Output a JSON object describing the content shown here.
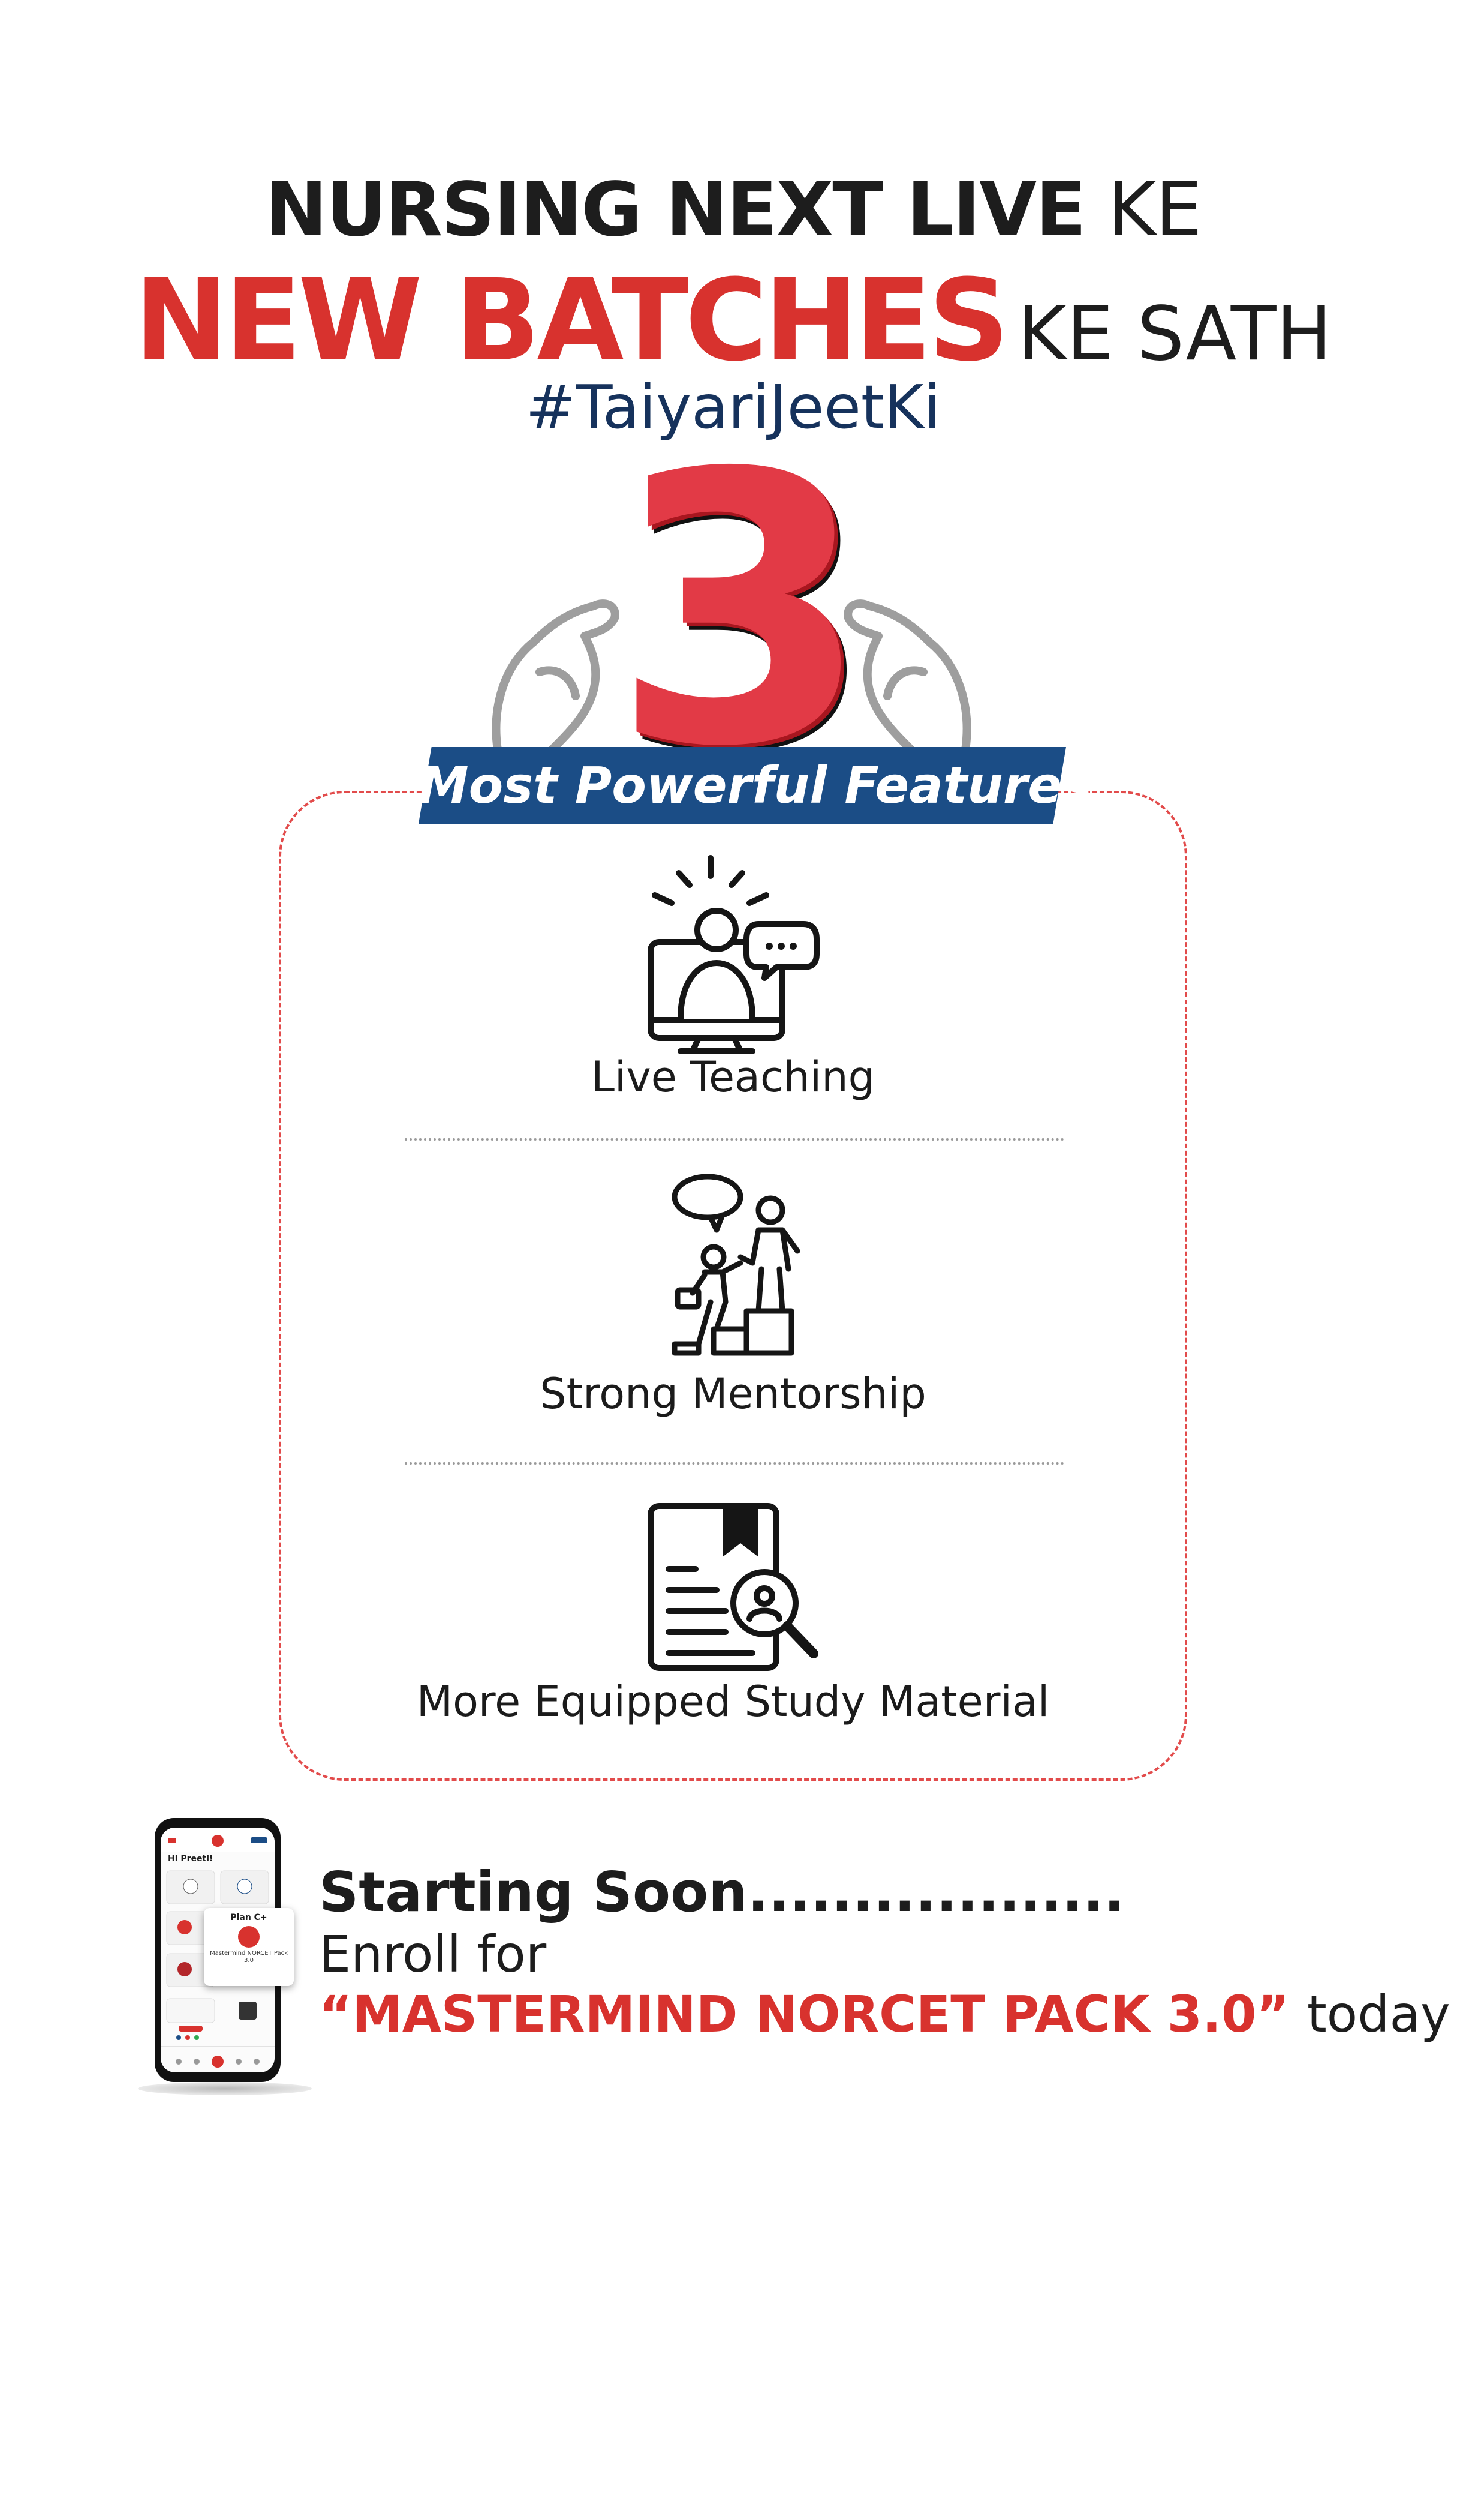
{
  "header": {
    "line1_bold": "NURSING NEXT LIVE",
    "line1_light": "KE",
    "line2_big": "NEW BATCHES",
    "line2_small": "KE SATH",
    "hashtag": "#TaiyariJeetKi"
  },
  "hero": {
    "number": "3",
    "banner": "Most Powerful Features"
  },
  "features": [
    {
      "icon": "live-teaching-icon",
      "label": "Live Teaching"
    },
    {
      "icon": "mentorship-icon",
      "label": "Strong Mentorship"
    },
    {
      "icon": "study-material-icon",
      "label": "More Equipped Study Material"
    }
  ],
  "promo": {
    "starting": "Starting Soon..................",
    "enroll": "Enroll for",
    "pack": "“MASTERMIND NORCET PACK 3.0”",
    "today": "today",
    "phone_greeting": "Hi Preeti!",
    "popup_title": "Plan C+",
    "popup_text": "Mastermind NORCET Pack 3.0"
  },
  "colors": {
    "red": "#d8322e",
    "navy": "#1b4d86",
    "dark_text": "#1d1d1d"
  }
}
